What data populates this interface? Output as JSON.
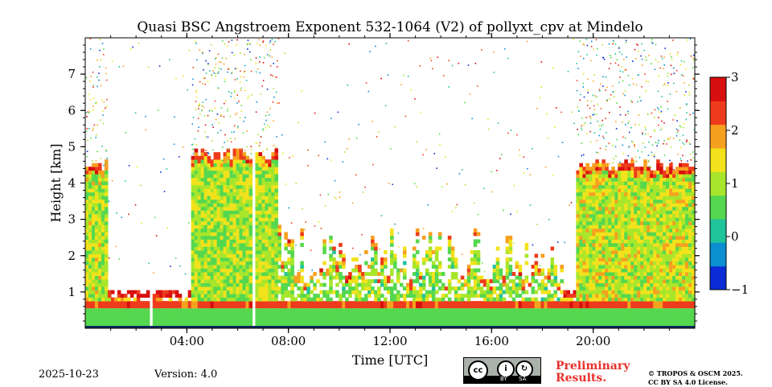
{
  "chart_data": {
    "type": "heatmap",
    "title": "Quasi BSC Angstroem Exponent 532-1064 (V2) of pollyxt_cpv at Mindelo",
    "xlabel": "Time [UTC]",
    "ylabel": "Height [km]",
    "xlim": [
      0,
      24
    ],
    "ylim": [
      0,
      8
    ],
    "x_ticks": [
      {
        "value": 4,
        "label": "04:00"
      },
      {
        "value": 8,
        "label": "08:00"
      },
      {
        "value": 12,
        "label": "12:00"
      },
      {
        "value": 16,
        "label": "16:00"
      },
      {
        "value": 20,
        "label": "20:00"
      }
    ],
    "y_ticks": [
      {
        "value": 1,
        "label": "1"
      },
      {
        "value": 2,
        "label": "2"
      },
      {
        "value": 3,
        "label": "3"
      },
      {
        "value": 4,
        "label": "4"
      },
      {
        "value": 5,
        "label": "5"
      },
      {
        "value": 6,
        "label": "6"
      },
      {
        "value": 7,
        "label": "7"
      }
    ],
    "colorbar": {
      "range": [
        -1,
        3
      ],
      "ticks": [
        {
          "value": 3,
          "label": "3"
        },
        {
          "value": 2,
          "label": "2"
        },
        {
          "value": 1,
          "label": "1"
        },
        {
          "value": 0,
          "label": "0"
        },
        {
          "value": -1,
          "label": "−1"
        }
      ],
      "colors": [
        "#0a2bd6",
        "#0b8fd0",
        "#1fc49a",
        "#55d84f",
        "#a8e62b",
        "#f2e21c",
        "#f6a020",
        "#ee3b1c",
        "#d80f0f"
      ]
    },
    "layers": {
      "boundary_layer": {
        "top_km": 0.55,
        "value": 0.6
      },
      "marine_layer_edge": {
        "top_km": 0.75,
        "value": 2.5
      },
      "dust_layer_periods": [
        {
          "start": 0.0,
          "end": 0.9,
          "top_km": 4.6,
          "value": 1.1
        },
        {
          "start": 4.2,
          "end": 7.6,
          "top_km": 4.9,
          "value": 1.0
        },
        {
          "start": 19.3,
          "end": 24.0,
          "top_km": 4.6,
          "value": 1.2
        }
      ],
      "data_gaps": [
        {
          "start": 2.5,
          "end": 2.65
        },
        {
          "start": 6.55,
          "end": 6.7
        }
      ]
    }
  },
  "footer": {
    "date": "2025-10-23",
    "version": "Version: 4.0",
    "preliminary_line1": "Preliminary",
    "preliminary_line2": "Results.",
    "copyright_line1": "© TROPOS & OSCM 2025.",
    "copyright_line2": "CC BY SA 4.0 License.",
    "license_badge": {
      "cc": "cc",
      "by": "BY",
      "sa": "SA"
    }
  }
}
